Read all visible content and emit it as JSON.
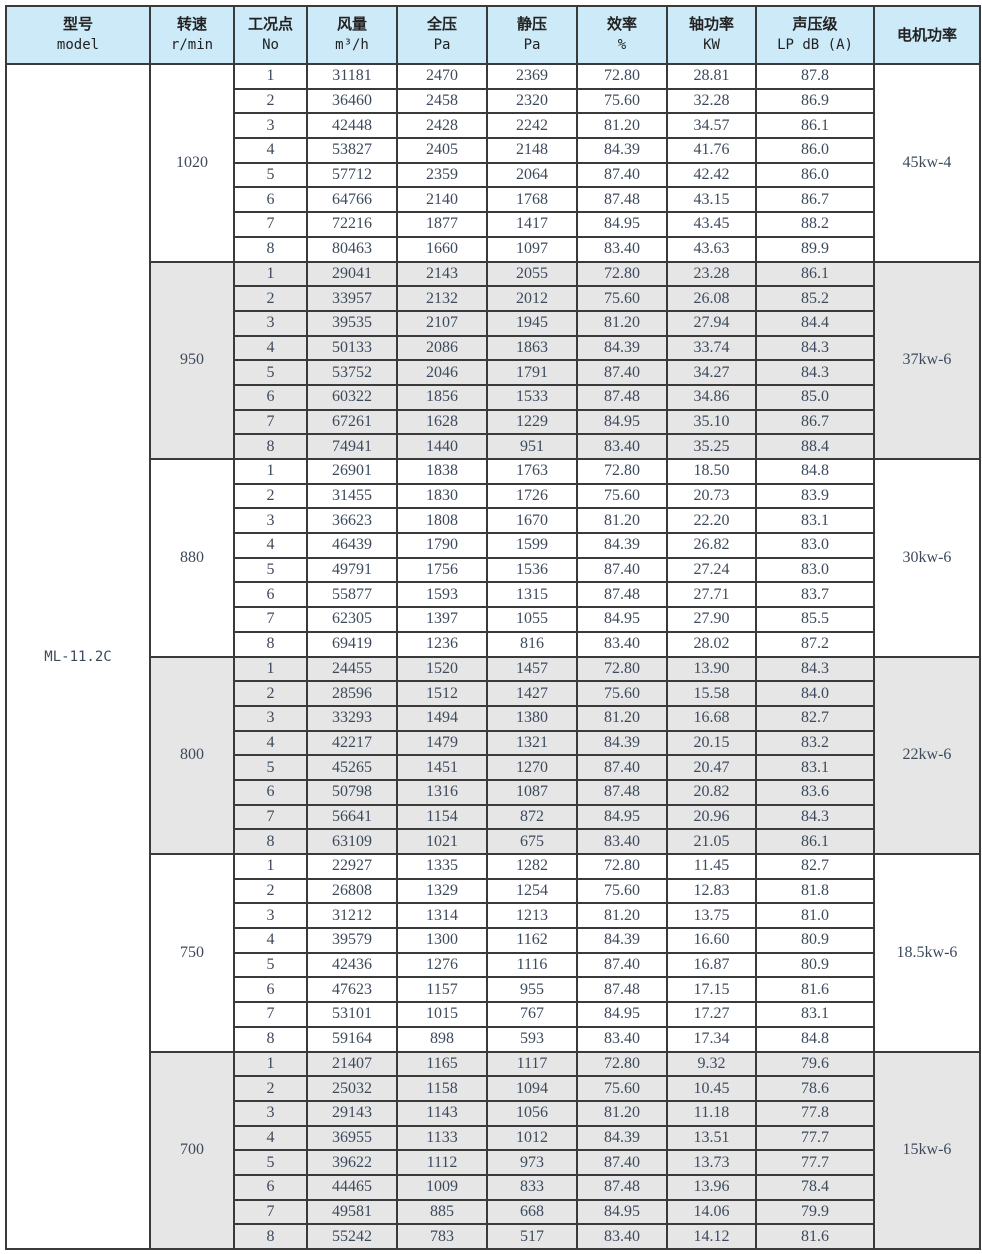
{
  "headers": [
    {
      "cn": "型号",
      "en": "model"
    },
    {
      "cn": "转速",
      "en": "r/min"
    },
    {
      "cn": "工况点",
      "en": "No"
    },
    {
      "cn": "风量",
      "en": "m³/h"
    },
    {
      "cn": "全压",
      "en": "Pa"
    },
    {
      "cn": "静压",
      "en": "Pa"
    },
    {
      "cn": "效率",
      "en": "%"
    },
    {
      "cn": "轴功率",
      "en": "KW"
    },
    {
      "cn": "声压级",
      "en": "LP dB (A)"
    },
    {
      "cn": "电机功率",
      "en": ""
    }
  ],
  "model": "ML-11.2C",
  "colors": {
    "header_bg": "#cdeaf8",
    "alt_group_bg": "#e6e6e6"
  },
  "groups": [
    {
      "speed": "1020",
      "motor": "45kw-4",
      "rows": [
        [
          "1",
          "31181",
          "2470",
          "2369",
          "72.80",
          "28.81",
          "87.8"
        ],
        [
          "2",
          "36460",
          "2458",
          "2320",
          "75.60",
          "32.28",
          "86.9"
        ],
        [
          "3",
          "42448",
          "2428",
          "2242",
          "81.20",
          "34.57",
          "86.1"
        ],
        [
          "4",
          "53827",
          "2405",
          "2148",
          "84.39",
          "41.76",
          "86.0"
        ],
        [
          "5",
          "57712",
          "2359",
          "2064",
          "87.40",
          "42.42",
          "86.0"
        ],
        [
          "6",
          "64766",
          "2140",
          "1768",
          "87.48",
          "43.15",
          "86.7"
        ],
        [
          "7",
          "72216",
          "1877",
          "1417",
          "84.95",
          "43.45",
          "88.2"
        ],
        [
          "8",
          "80463",
          "1660",
          "1097",
          "83.40",
          "43.63",
          "89.9"
        ]
      ]
    },
    {
      "speed": "950",
      "motor": "37kw-6",
      "rows": [
        [
          "1",
          "29041",
          "2143",
          "2055",
          "72.80",
          "23.28",
          "86.1"
        ],
        [
          "2",
          "33957",
          "2132",
          "2012",
          "75.60",
          "26.08",
          "85.2"
        ],
        [
          "3",
          "39535",
          "2107",
          "1945",
          "81.20",
          "27.94",
          "84.4"
        ],
        [
          "4",
          "50133",
          "2086",
          "1863",
          "84.39",
          "33.74",
          "84.3"
        ],
        [
          "5",
          "53752",
          "2046",
          "1791",
          "87.40",
          "34.27",
          "84.3"
        ],
        [
          "6",
          "60322",
          "1856",
          "1533",
          "87.48",
          "34.86",
          "85.0"
        ],
        [
          "7",
          "67261",
          "1628",
          "1229",
          "84.95",
          "35.10",
          "86.7"
        ],
        [
          "8",
          "74941",
          "1440",
          "951",
          "83.40",
          "35.25",
          "88.4"
        ]
      ]
    },
    {
      "speed": "880",
      "motor": "30kw-6",
      "rows": [
        [
          "1",
          "26901",
          "1838",
          "1763",
          "72.80",
          "18.50",
          "84.8"
        ],
        [
          "2",
          "31455",
          "1830",
          "1726",
          "75.60",
          "20.73",
          "83.9"
        ],
        [
          "3",
          "36623",
          "1808",
          "1670",
          "81.20",
          "22.20",
          "83.1"
        ],
        [
          "4",
          "46439",
          "1790",
          "1599",
          "84.39",
          "26.82",
          "83.0"
        ],
        [
          "5",
          "49791",
          "1756",
          "1536",
          "87.40",
          "27.24",
          "83.0"
        ],
        [
          "6",
          "55877",
          "1593",
          "1315",
          "87.48",
          "27.71",
          "83.7"
        ],
        [
          "7",
          "62305",
          "1397",
          "1055",
          "84.95",
          "27.90",
          "85.5"
        ],
        [
          "8",
          "69419",
          "1236",
          "816",
          "83.40",
          "28.02",
          "87.2"
        ]
      ]
    },
    {
      "speed": "800",
      "motor": "22kw-6",
      "rows": [
        [
          "1",
          "24455",
          "1520",
          "1457",
          "72.80",
          "13.90",
          "84.3"
        ],
        [
          "2",
          "28596",
          "1512",
          "1427",
          "75.60",
          "15.58",
          "84.0"
        ],
        [
          "3",
          "33293",
          "1494",
          "1380",
          "81.20",
          "16.68",
          "82.7"
        ],
        [
          "4",
          "42217",
          "1479",
          "1321",
          "84.39",
          "20.15",
          "83.2"
        ],
        [
          "5",
          "45265",
          "1451",
          "1270",
          "87.40",
          "20.47",
          "83.1"
        ],
        [
          "6",
          "50798",
          "1316",
          "1087",
          "87.48",
          "20.82",
          "83.6"
        ],
        [
          "7",
          "56641",
          "1154",
          "872",
          "84.95",
          "20.96",
          "84.3"
        ],
        [
          "8",
          "63109",
          "1021",
          "675",
          "83.40",
          "21.05",
          "86.1"
        ]
      ]
    },
    {
      "speed": "750",
      "motor": "18.5kw-6",
      "rows": [
        [
          "1",
          "22927",
          "1335",
          "1282",
          "72.80",
          "11.45",
          "82.7"
        ],
        [
          "2",
          "26808",
          "1329",
          "1254",
          "75.60",
          "12.83",
          "81.8"
        ],
        [
          "3",
          "31212",
          "1314",
          "1213",
          "81.20",
          "13.75",
          "81.0"
        ],
        [
          "4",
          "39579",
          "1300",
          "1162",
          "84.39",
          "16.60",
          "80.9"
        ],
        [
          "5",
          "42436",
          "1276",
          "1116",
          "87.40",
          "16.87",
          "80.9"
        ],
        [
          "6",
          "47623",
          "1157",
          "955",
          "87.48",
          "17.15",
          "81.6"
        ],
        [
          "7",
          "53101",
          "1015",
          "767",
          "84.95",
          "17.27",
          "83.1"
        ],
        [
          "8",
          "59164",
          "898",
          "593",
          "83.40",
          "17.34",
          "84.8"
        ]
      ]
    },
    {
      "speed": "700",
      "motor": "15kw-6",
      "rows": [
        [
          "1",
          "21407",
          "1165",
          "1117",
          "72.80",
          "9.32",
          "79.6"
        ],
        [
          "2",
          "25032",
          "1158",
          "1094",
          "75.60",
          "10.45",
          "78.6"
        ],
        [
          "3",
          "29143",
          "1143",
          "1056",
          "81.20",
          "11.18",
          "77.8"
        ],
        [
          "4",
          "36955",
          "1133",
          "1012",
          "84.39",
          "13.51",
          "77.7"
        ],
        [
          "5",
          "39622",
          "1112",
          "973",
          "87.40",
          "13.73",
          "77.7"
        ],
        [
          "6",
          "44465",
          "1009",
          "833",
          "87.48",
          "13.96",
          "78.4"
        ],
        [
          "7",
          "49581",
          "885",
          "668",
          "84.95",
          "14.06",
          "79.9"
        ],
        [
          "8",
          "55242",
          "783",
          "517",
          "83.40",
          "14.12",
          "81.6"
        ]
      ]
    }
  ]
}
